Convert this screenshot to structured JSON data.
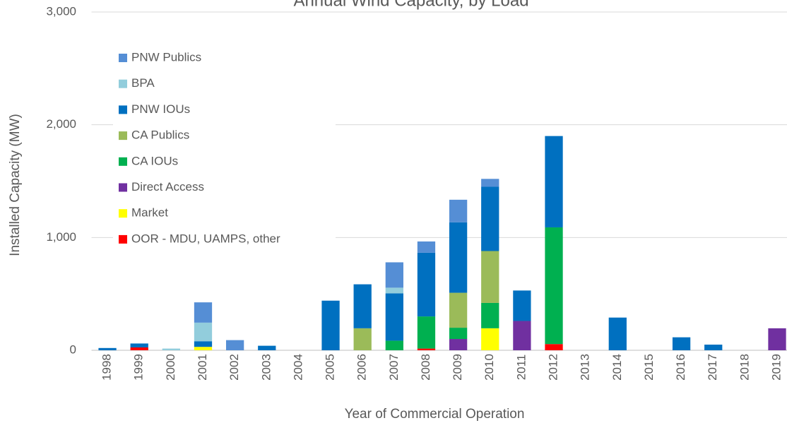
{
  "chart_data": {
    "type": "stacked_bar",
    "title": "Annual Wind Capacity, by Load",
    "x_label": "Year of Commercial Operation",
    "y_label": "Installed Capacity (MW)",
    "categories": [
      "1998",
      "1999",
      "2000",
      "2001",
      "2002",
      "2003",
      "2004",
      "2005",
      "2006",
      "2007",
      "2008",
      "2009",
      "2010",
      "2011",
      "2012",
      "2013",
      "2014",
      "2015",
      "2016",
      "2017",
      "2018",
      "2019"
    ],
    "series": [
      {
        "name": "OOR - MDU, UAMPS, other",
        "color": "#ff0000",
        "values": [
          0,
          25,
          0,
          0,
          0,
          0,
          0,
          0,
          0,
          0,
          15,
          0,
          0,
          0,
          55,
          0,
          0,
          0,
          0,
          0,
          0,
          0
        ]
      },
      {
        "name": "Market",
        "color": "#ffff00",
        "values": [
          0,
          0,
          0,
          30,
          0,
          0,
          0,
          0,
          0,
          0,
          0,
          0,
          195,
          0,
          0,
          0,
          0,
          0,
          0,
          0,
          0,
          0
        ]
      },
      {
        "name": "Direct Access",
        "color": "#7030a0",
        "values": [
          0,
          0,
          0,
          0,
          0,
          0,
          0,
          0,
          0,
          0,
          0,
          100,
          0,
          260,
          0,
          0,
          0,
          0,
          0,
          0,
          0,
          195
        ]
      },
      {
        "name": "CA IOUs",
        "color": "#00b050",
        "values": [
          0,
          0,
          0,
          0,
          0,
          0,
          0,
          0,
          0,
          85,
          285,
          100,
          225,
          0,
          1035,
          0,
          0,
          0,
          0,
          0,
          0,
          0
        ]
      },
      {
        "name": "CA Publics",
        "color": "#9bbb59",
        "values": [
          0,
          0,
          0,
          0,
          0,
          0,
          0,
          0,
          195,
          0,
          0,
          310,
          460,
          0,
          0,
          0,
          0,
          0,
          0,
          0,
          0,
          0
        ]
      },
      {
        "name": "PNW IOUs",
        "color": "#0070c0",
        "values": [
          20,
          35,
          0,
          50,
          0,
          40,
          0,
          440,
          390,
          420,
          565,
          625,
          570,
          270,
          810,
          0,
          290,
          0,
          115,
          50,
          0,
          0
        ]
      },
      {
        "name": "BPA",
        "color": "#92cddc",
        "values": [
          0,
          0,
          15,
          165,
          0,
          0,
          0,
          0,
          0,
          50,
          0,
          0,
          0,
          0,
          0,
          0,
          0,
          0,
          0,
          0,
          0,
          0
        ]
      },
      {
        "name": "PNW Publics",
        "color": "#558ed5",
        "values": [
          0,
          0,
          0,
          180,
          90,
          0,
          0,
          0,
          0,
          225,
          100,
          200,
          70,
          0,
          0,
          0,
          0,
          0,
          0,
          0,
          0,
          0
        ]
      }
    ],
    "ylim": [
      0,
      3000
    ],
    "yticks": [
      0,
      {
        "value": 1000,
        "label": "1,000"
      },
      {
        "value": 2000,
        "label": "2,000"
      },
      {
        "value": 3000,
        "label": "3,000"
      }
    ],
    "grid": true,
    "legend": "upper left"
  }
}
